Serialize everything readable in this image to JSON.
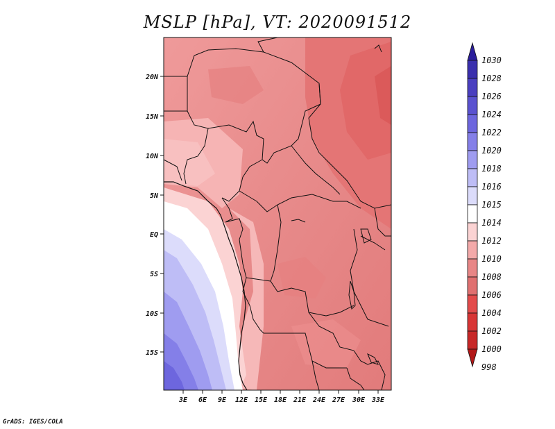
{
  "title": "MSLP [hPa], VT: 2020091512",
  "credit": "GrADS: IGES/COLA",
  "map": {
    "region": "Central/Southern Africa",
    "lat_ticks": [
      "20N",
      "15N",
      "10N",
      "5N",
      "EQ",
      "5S",
      "10S",
      "15S"
    ],
    "lon_ticks": [
      "3E",
      "6E",
      "9E",
      "12E",
      "15E",
      "18E",
      "21E",
      "24E",
      "27E",
      "30E",
      "33E"
    ]
  },
  "colorbar": {
    "levels": [
      "1030",
      "1028",
      "1026",
      "1024",
      "1022",
      "1020",
      "1018",
      "1016",
      "1015",
      "1014",
      "1012",
      "1010",
      "1008",
      "1006",
      "1004",
      "1002",
      "1000",
      "998"
    ],
    "colors": [
      "#2b1e9c",
      "#3a2fad",
      "#4a3fc0",
      "#5a52d0",
      "#6d66de",
      "#847fe8",
      "#9f9cf0",
      "#bebdf6",
      "#dcdcfb",
      "#ffffff",
      "#fbd3d3",
      "#f3a9a9",
      "#e88686",
      "#e07070",
      "#e34b4b",
      "#d83535",
      "#c72727",
      "#b21818"
    ]
  }
}
